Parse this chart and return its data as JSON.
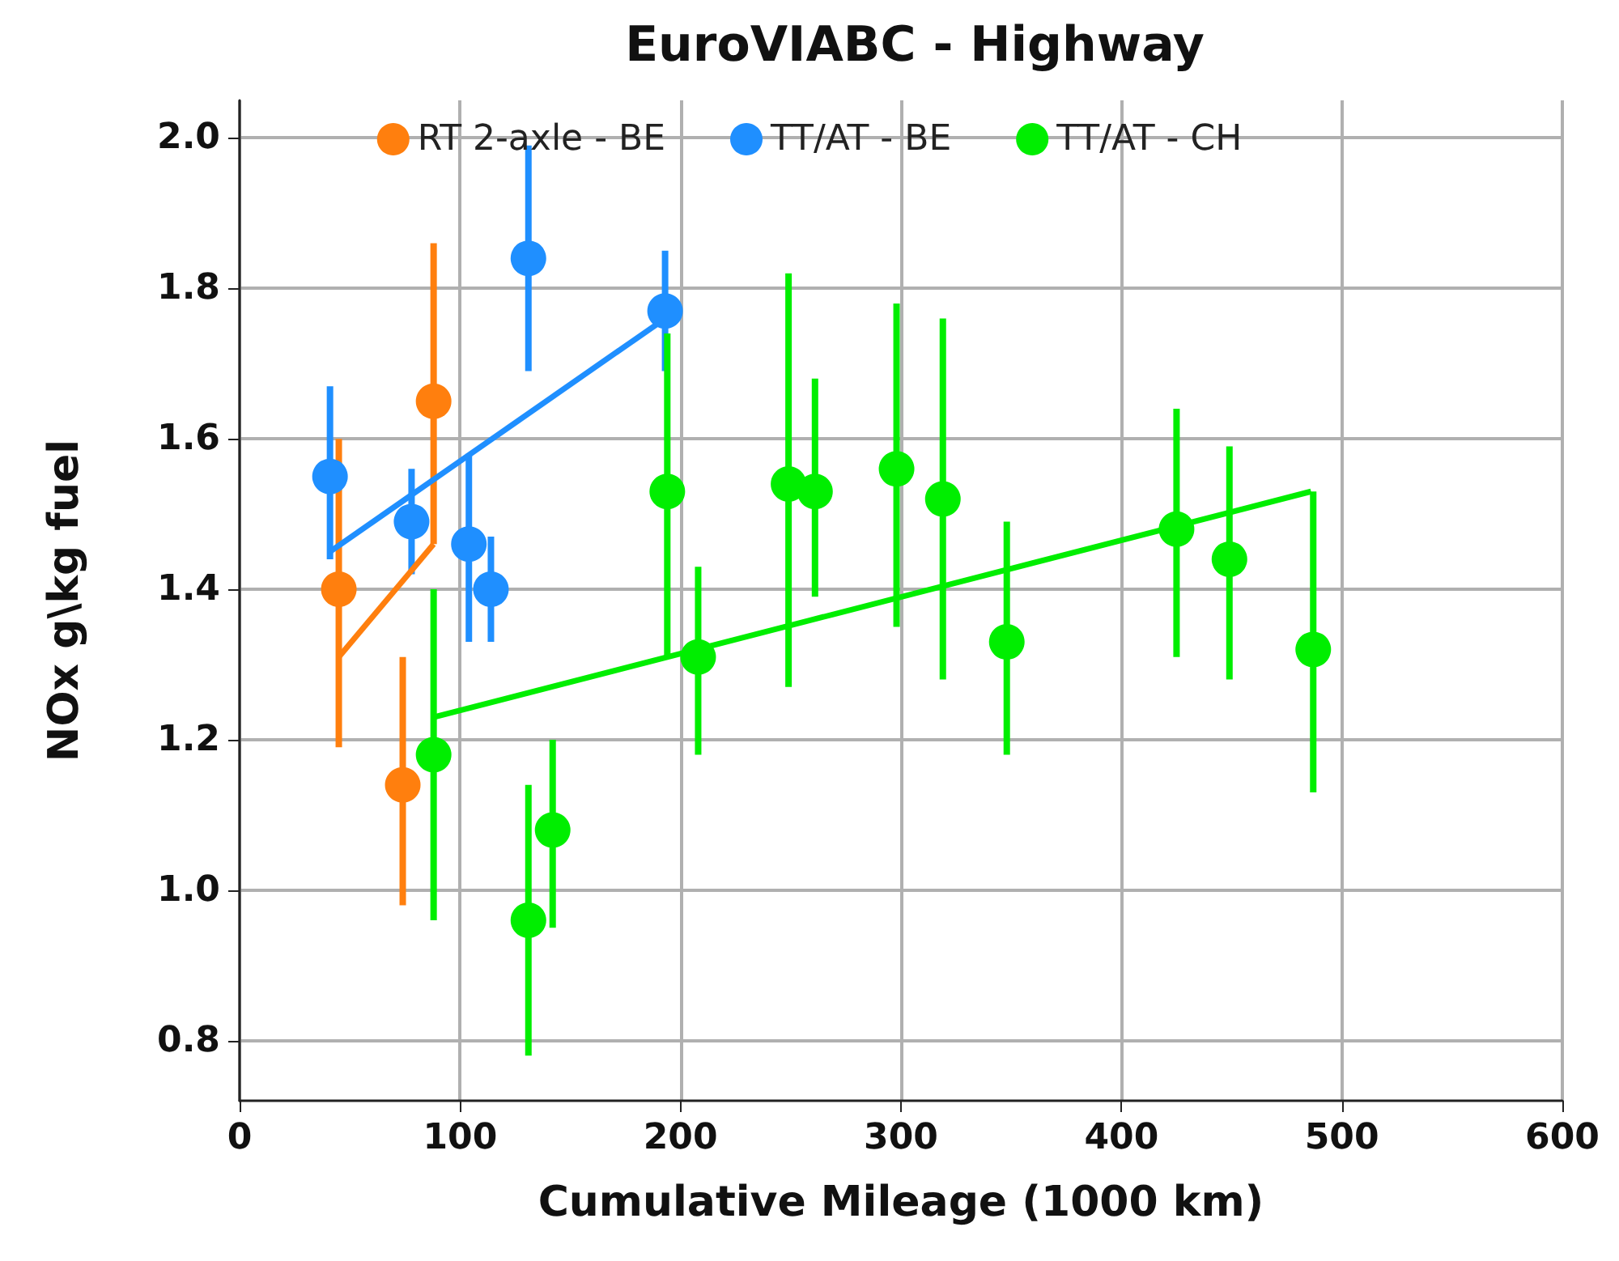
{
  "chart_data": {
    "type": "scatter",
    "title": "EuroVIABC - Highway",
    "xlabel": "Cumulative Mileage (1000 km)",
    "ylabel": "NOx g\\kg fuel",
    "xlim": [
      0,
      600
    ],
    "xticks": [
      0,
      100,
      200,
      300,
      400,
      500,
      600
    ],
    "ylim": [
      0.72,
      2.05
    ],
    "yticks": [
      {
        "value": 0.8,
        "label": "0.8"
      },
      {
        "value": 1,
        "label": "1.0"
      },
      {
        "value": 1.2,
        "label": "1.2"
      },
      {
        "value": 1.4,
        "label": "1.4"
      },
      {
        "value": 1.6,
        "label": "1.6"
      },
      {
        "value": 1.8,
        "label": "1.8"
      },
      {
        "value": 2,
        "label": "2.0"
      }
    ],
    "grid": true,
    "legend": "top",
    "marker": "circle",
    "series": [
      {
        "name": "RT 2-axle - BE",
        "color": "#ff7f0e",
        "x": [
          45,
          74,
          88
        ],
        "values": [
          1.4,
          1.14,
          1.65
        ],
        "errors": [
          [
            1.19,
            1.6
          ],
          [
            0.98,
            1.31
          ],
          [
            1.46,
            1.86
          ]
        ]
      },
      {
        "name": "TT/AT - BE",
        "color": "#1f8fff",
        "x": [
          41,
          78,
          104,
          114,
          131,
          193
        ],
        "values": [
          1.55,
          1.49,
          1.46,
          1.4,
          1.84,
          1.77
        ],
        "errors": [
          [
            1.44,
            1.67
          ],
          [
            1.42,
            1.56
          ],
          [
            1.33,
            1.58
          ],
          [
            1.33,
            1.47
          ],
          [
            1.69,
            1.99
          ],
          [
            1.69,
            1.85
          ]
        ]
      },
      {
        "name": "TT/AT - CH",
        "color": "#00ee00",
        "x": [
          88,
          131,
          142,
          194,
          208,
          249,
          261,
          298,
          319,
          348,
          425,
          449,
          487
        ],
        "values": [
          1.18,
          0.96,
          1.08,
          1.53,
          1.31,
          1.54,
          1.53,
          1.56,
          1.52,
          1.33,
          1.48,
          1.44,
          1.32
        ],
        "errors": [
          [
            0.96,
            1.4
          ],
          [
            0.78,
            1.14
          ],
          [
            0.95,
            1.2
          ],
          [
            1.31,
            1.74
          ],
          [
            1.18,
            1.43
          ],
          [
            1.27,
            1.82
          ],
          [
            1.39,
            1.68
          ],
          [
            1.35,
            1.78
          ],
          [
            1.28,
            1.76
          ],
          [
            1.18,
            1.49
          ],
          [
            1.31,
            1.64
          ],
          [
            1.28,
            1.59
          ],
          [
            1.13,
            1.53
          ]
        ]
      },
      {
        "type": "line",
        "marker": "none",
        "color": "#ff7f0e",
        "x": [
          45,
          88
        ],
        "values": [
          1.31,
          1.46
        ]
      },
      {
        "type": "line",
        "marker": "none",
        "color": "#1f8fff",
        "x": [
          41,
          193
        ],
        "values": [
          1.45,
          1.76
        ]
      },
      {
        "type": "line",
        "marker": "none",
        "color": "#00ee00",
        "x": [
          88,
          486
        ],
        "values": [
          1.23,
          1.53
        ]
      }
    ]
  }
}
